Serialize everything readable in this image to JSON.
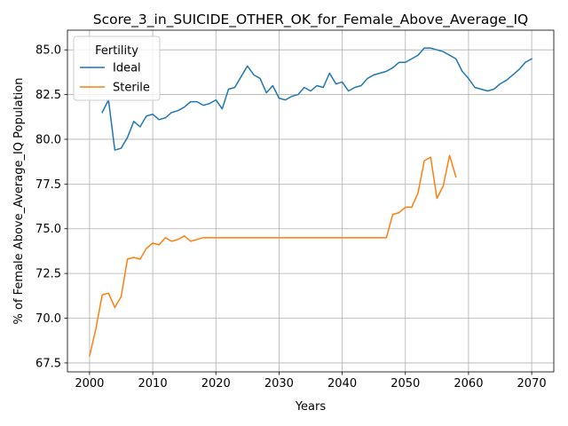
{
  "chart_data": {
    "type": "line",
    "title": "Score_3_in_SUICIDE_OTHER_OK_for_Female_Above_Average_IQ",
    "xlabel": "Years",
    "ylabel": "% of Female Above_Average_IQ Population",
    "xlim": [
      1996.5,
      2073.5
    ],
    "ylim": [
      67.0,
      86.1
    ],
    "xticks": [
      2000,
      2010,
      2020,
      2030,
      2040,
      2050,
      2060,
      2070
    ],
    "yticks": [
      67.5,
      70.0,
      72.5,
      75.0,
      77.5,
      80.0,
      82.5,
      85.0
    ],
    "ytick_labels": [
      "67.5",
      "70.0",
      "72.5",
      "75.0",
      "77.5",
      "80.0",
      "82.5",
      "85.0"
    ],
    "grid": true,
    "legend": {
      "title": "Fertility",
      "placement": "top-left"
    },
    "series": [
      {
        "name": "Ideal",
        "color": "#1f77b4",
        "x": [
          2002,
          2003,
          2004,
          2005,
          2006,
          2007,
          2008,
          2009,
          2010,
          2011,
          2012,
          2013,
          2014,
          2015,
          2016,
          2017,
          2018,
          2019,
          2020,
          2021,
          2022,
          2023,
          2024,
          2025,
          2026,
          2027,
          2028,
          2029,
          2030,
          2031,
          2032,
          2033,
          2034,
          2035,
          2036,
          2037,
          2038,
          2039,
          2040,
          2041,
          2042,
          2043,
          2044,
          2045,
          2046,
          2047,
          2048,
          2049,
          2050,
          2051,
          2052,
          2053,
          2054,
          2055,
          2056,
          2057,
          2058,
          2059,
          2060,
          2061,
          2062,
          2063,
          2064,
          2065,
          2066,
          2067,
          2068,
          2069,
          2070
        ],
        "y": [
          81.5,
          82.2,
          79.4,
          79.5,
          80.1,
          81.0,
          80.7,
          81.3,
          81.4,
          81.1,
          81.2,
          81.5,
          81.6,
          81.8,
          82.1,
          82.1,
          81.9,
          82.0,
          82.2,
          81.7,
          82.8,
          82.9,
          83.5,
          84.1,
          83.6,
          83.4,
          82.6,
          83.0,
          82.3,
          82.2,
          82.4,
          82.5,
          82.9,
          82.7,
          83.0,
          82.9,
          83.7,
          83.1,
          83.2,
          82.7,
          82.9,
          83.0,
          83.4,
          83.6,
          83.7,
          83.8,
          84.0,
          84.3,
          84.3,
          84.5,
          84.7,
          85.1,
          85.1,
          85.0,
          84.9,
          84.7,
          84.5,
          83.8,
          83.4,
          82.9,
          82.8,
          82.7,
          82.8,
          83.1,
          83.3,
          83.6,
          83.9,
          84.3,
          84.5
        ]
      },
      {
        "name": "Sterile",
        "color": "#ff7f0e",
        "x": [
          2000,
          2001,
          2002,
          2003,
          2004,
          2005,
          2006,
          2007,
          2008,
          2009,
          2010,
          2011,
          2012,
          2013,
          2014,
          2015,
          2016,
          2017,
          2018,
          2019,
          2020,
          2021,
          2022,
          2023,
          2024,
          2025,
          2026,
          2027,
          2028,
          2029,
          2030,
          2031,
          2032,
          2033,
          2034,
          2035,
          2036,
          2037,
          2038,
          2039,
          2040,
          2041,
          2042,
          2043,
          2044,
          2045,
          2046,
          2047,
          2048,
          2049,
          2050,
          2051,
          2052,
          2053,
          2054,
          2055,
          2056,
          2057,
          2058
        ],
        "y": [
          67.9,
          69.4,
          71.3,
          71.4,
          70.6,
          71.2,
          73.3,
          73.4,
          73.3,
          73.9,
          74.2,
          74.1,
          74.5,
          74.3,
          74.4,
          74.6,
          74.3,
          74.4,
          74.5,
          74.5,
          74.5,
          74.5,
          74.5,
          74.5,
          74.5,
          74.5,
          74.5,
          74.5,
          74.5,
          74.5,
          74.5,
          74.5,
          74.5,
          74.5,
          74.5,
          74.5,
          74.5,
          74.5,
          74.5,
          74.5,
          74.5,
          74.5,
          74.5,
          74.5,
          74.5,
          74.5,
          74.5,
          74.5,
          75.8,
          75.9,
          76.2,
          76.2,
          77.0,
          78.8,
          79.0,
          76.7,
          77.4,
          79.1,
          77.9
        ]
      }
    ]
  }
}
